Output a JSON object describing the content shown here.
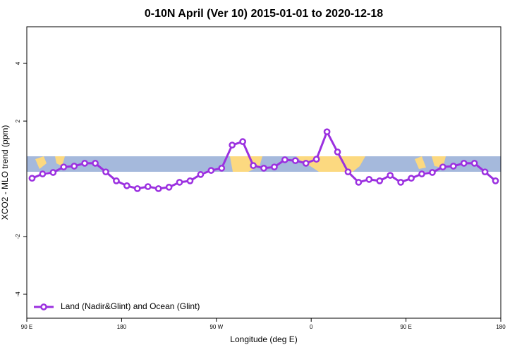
{
  "chart_data": {
    "type": "line",
    "title": "0-10N April (Ver 10)   2015-01-01 to 2020-12-18",
    "x_label": "Longitude (deg E)",
    "y_label": "XCO2 - MLO trend (ppm)",
    "x": [
      95,
      105,
      115,
      125,
      135,
      145,
      155,
      165,
      175,
      185,
      195,
      205,
      215,
      225,
      235,
      245,
      255,
      265,
      275,
      285,
      295,
      305,
      315,
      325,
      335,
      345,
      355,
      365,
      375,
      385,
      395,
      405,
      415,
      425,
      435,
      445,
      455,
      465,
      475,
      485,
      495,
      505,
      515,
      525,
      535
    ],
    "series": [
      {
        "name": "Land (Nadir&Glint) and Ocean (Glint)",
        "color": "#9b30e0",
        "values": [
          0.02,
          0.17,
          0.22,
          0.41,
          0.44,
          0.54,
          0.54,
          0.24,
          -0.07,
          -0.24,
          -0.34,
          -0.27,
          -0.34,
          -0.29,
          -0.12,
          -0.07,
          0.15,
          0.29,
          0.37,
          1.17,
          1.29,
          0.46,
          0.37,
          0.41,
          0.66,
          0.63,
          0.54,
          0.68,
          1.63,
          0.93,
          0.24,
          -0.12,
          -0.02,
          -0.07,
          0.12,
          -0.12,
          0.02,
          0.17,
          0.22,
          0.41,
          0.44,
          0.54,
          0.54,
          0.24,
          -0.07
        ]
      }
    ],
    "xlim": [
      90,
      540
    ],
    "xticks": [
      {
        "value": 90,
        "label": "90 E"
      },
      180,
      {
        "value": 270,
        "label": "90 W"
      },
      {
        "value": 360,
        "label": "0"
      },
      {
        "value": 450,
        "label": "90 E"
      },
      {
        "value": 540,
        "label": "180"
      }
    ],
    "ylim": [
      -4.83,
      5.27
    ],
    "yticks": [
      -4,
      -2,
      2,
      4
    ],
    "legend": "bottom-left"
  }
}
